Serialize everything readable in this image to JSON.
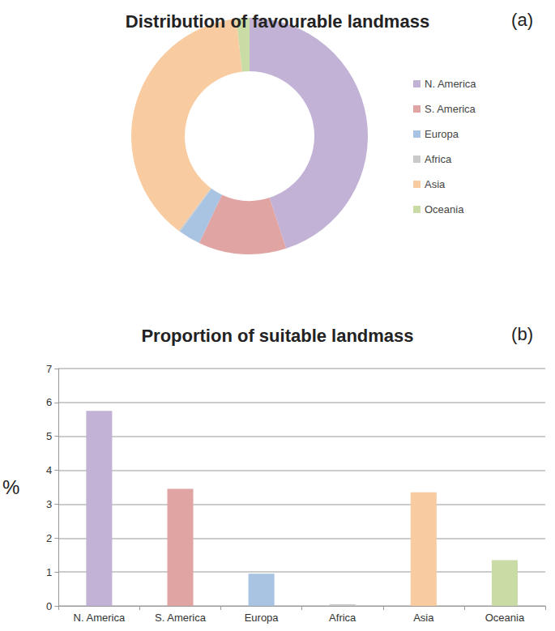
{
  "chart_data": [
    {
      "type": "pie",
      "title": "Distribution of favourable landmass",
      "annotation": "(a)",
      "categories": [
        "N. America",
        "S. America",
        "Europa",
        "Africa",
        "Asia",
        "Oceania"
      ],
      "values": [
        45,
        12,
        3,
        0.2,
        38,
        1.8
      ],
      "colors": [
        "#c2b2d6",
        "#e0a4a3",
        "#a9c3e3",
        "#c9c9c9",
        "#f8cba1",
        "#c9dca6"
      ],
      "legend": "right"
    },
    {
      "type": "bar",
      "title": "Proportion of suitable landmass",
      "annotation": "(b)",
      "ylabel": "%",
      "categories": [
        "N. America",
        "S. America",
        "Europa",
        "Africa",
        "Asia",
        "Oceania"
      ],
      "values": [
        5.75,
        3.45,
        0.95,
        0.05,
        3.35,
        1.35
      ],
      "colors": [
        "#c2b2d6",
        "#e0a4a3",
        "#a9c3e3",
        "#c9c9c9",
        "#f8cba1",
        "#c9dca6"
      ],
      "ylim": [
        0,
        7
      ],
      "yticks": [
        0,
        1,
        2,
        3,
        4,
        5,
        6,
        7
      ],
      "grid": true
    }
  ]
}
